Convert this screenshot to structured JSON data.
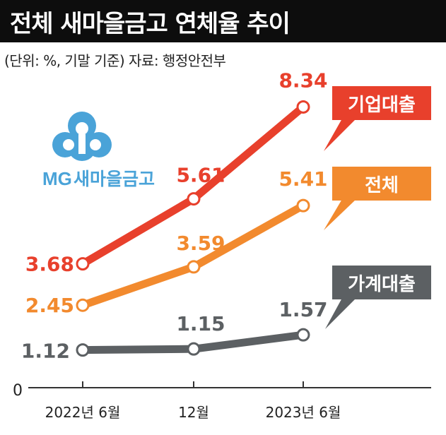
{
  "title": "전체 새마을금고 연체율 추이",
  "meta": "(단위: %, 기말 기준)   자료: 행정안전부",
  "logo": {
    "prefix": "MG",
    "name": "새마을금고",
    "color": "#4aa3d8"
  },
  "colors": {
    "corporate": "#e8402c",
    "total": "#f28a2e",
    "household": "#5c6063",
    "axis": "#333333"
  },
  "chart_data": {
    "type": "line",
    "categories": [
      "2022년 6월",
      "12월",
      "2023년 6월"
    ],
    "y_tick_labels": [
      "0"
    ],
    "ylim": [
      0,
      9
    ],
    "grid": false,
    "series": [
      {
        "name": "기업대출",
        "values": [
          3.68,
          5.61,
          8.34
        ],
        "labels": [
          "3.68",
          "5.61",
          "8.34"
        ]
      },
      {
        "name": "전체",
        "values": [
          2.45,
          3.59,
          5.41
        ],
        "labels": [
          "2.45",
          "3.59",
          "5.41"
        ]
      },
      {
        "name": "가계대출",
        "values": [
          1.12,
          1.15,
          1.57
        ],
        "labels": [
          "1.12",
          "1.15",
          "1.57"
        ]
      }
    ]
  }
}
